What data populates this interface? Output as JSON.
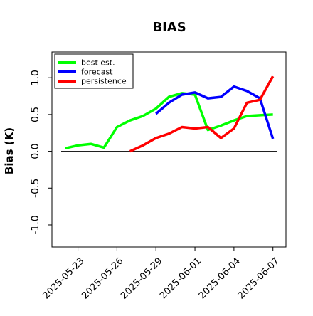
{
  "chart_data": {
    "type": "line",
    "title": "BIAS",
    "ylabel": "Bias (K)",
    "xlabel": "",
    "ylim": [
      -1.3,
      1.35
    ],
    "xlim_dates": [
      "2025-05-21",
      "2025-06-08"
    ],
    "yticks": [
      -1.0,
      -0.5,
      0.0,
      0.5,
      1.0
    ],
    "ytick_labels": [
      "-1.0",
      "-0.5",
      "0.0",
      "0.5",
      "1.0"
    ],
    "xticks": [
      "2025-05-23",
      "2025-05-26",
      "2025-05-29",
      "2025-06-01",
      "2025-06-04",
      "2025-06-07"
    ],
    "xtick_labels": [
      "2025-05-23",
      "2025-05-26",
      "2025-05-29",
      "2025-06-01",
      "2025-06-04",
      "2025-06-07"
    ],
    "xtick_colors": [
      "#000000",
      "#000000",
      "#228b22",
      "#000000",
      "#000000",
      "#000000"
    ],
    "zero_line": true,
    "grid": false,
    "legend_position": "top-left",
    "series": [
      {
        "name": "best est.",
        "color": "#00ff00",
        "points": [
          [
            "2025-05-22",
            0.04
          ],
          [
            "2025-05-23",
            0.08
          ],
          [
            "2025-05-24",
            0.1
          ],
          [
            "2025-05-25",
            0.05
          ],
          [
            "2025-05-26",
            0.33
          ],
          [
            "2025-05-27",
            0.42
          ],
          [
            "2025-05-28",
            0.48
          ],
          [
            "2025-05-29",
            0.58
          ],
          [
            "2025-05-30",
            0.74
          ],
          [
            "2025-05-31",
            0.79
          ],
          [
            "2025-06-01",
            0.77
          ],
          [
            "2025-06-02",
            0.29
          ],
          [
            "2025-06-03",
            0.35
          ],
          [
            "2025-06-04",
            0.42
          ],
          [
            "2025-06-05",
            0.48
          ],
          [
            "2025-06-06",
            0.49
          ],
          [
            "2025-06-07",
            0.5
          ]
        ]
      },
      {
        "name": "forecast",
        "color": "#0000ff",
        "points": [
          [
            "2025-05-29",
            0.51
          ],
          [
            "2025-05-30",
            0.66
          ],
          [
            "2025-05-31",
            0.77
          ],
          [
            "2025-06-01",
            0.8
          ],
          [
            "2025-06-02",
            0.72
          ],
          [
            "2025-06-03",
            0.74
          ],
          [
            "2025-06-04",
            0.88
          ],
          [
            "2025-06-05",
            0.82
          ],
          [
            "2025-06-06",
            0.72
          ],
          [
            "2025-06-07",
            0.17
          ]
        ]
      },
      {
        "name": "persistence",
        "color": "#ff0000",
        "points": [
          [
            "2025-05-27",
            0.0
          ],
          [
            "2025-05-28",
            0.08
          ],
          [
            "2025-05-29",
            0.18
          ],
          [
            "2025-05-30",
            0.24
          ],
          [
            "2025-05-31",
            0.33
          ],
          [
            "2025-06-01",
            0.31
          ],
          [
            "2025-06-02",
            0.33
          ],
          [
            "2025-06-03",
            0.18
          ],
          [
            "2025-06-04",
            0.31
          ],
          [
            "2025-06-05",
            0.66
          ],
          [
            "2025-06-06",
            0.7
          ],
          [
            "2025-06-07",
            1.02
          ]
        ]
      }
    ]
  }
}
